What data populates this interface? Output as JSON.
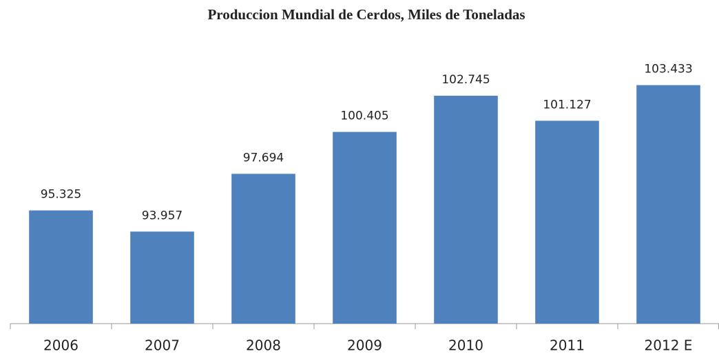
{
  "chart_data": {
    "type": "bar",
    "title": "Produccion Mundial de Cerdos, Miles de Toneladas",
    "categories": [
      "2006",
      "2007",
      "2008",
      "2009",
      "2010",
      "2011",
      "2012 E"
    ],
    "values": [
      95325,
      93957,
      97694,
      100405,
      102745,
      101127,
      103433
    ],
    "value_labels": [
      "95.325",
      "93.957",
      "97.694",
      "100.405",
      "102.745",
      "101.127",
      "103.433"
    ],
    "color": "#4f81bd",
    "ylim": [
      88000,
      106000
    ]
  }
}
